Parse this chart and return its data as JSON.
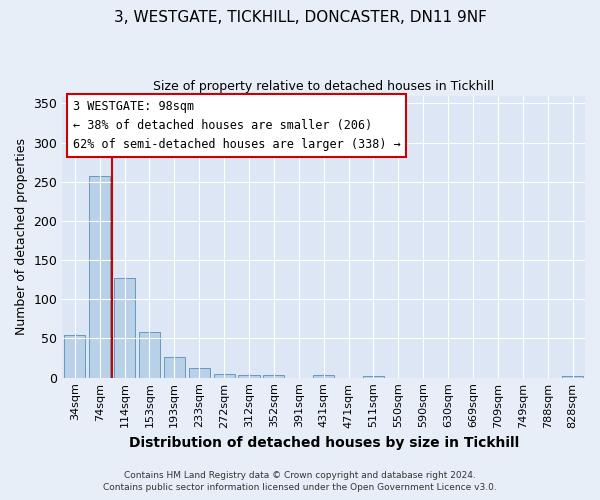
{
  "title": "3, WESTGATE, TICKHILL, DONCASTER, DN11 9NF",
  "subtitle": "Size of property relative to detached houses in Tickhill",
  "xlabel": "Distribution of detached houses by size in Tickhill",
  "ylabel": "Number of detached properties",
  "bar_labels": [
    "34sqm",
    "74sqm",
    "114sqm",
    "153sqm",
    "193sqm",
    "233sqm",
    "272sqm",
    "312sqm",
    "352sqm",
    "391sqm",
    "431sqm",
    "471sqm",
    "511sqm",
    "550sqm",
    "590sqm",
    "630sqm",
    "669sqm",
    "709sqm",
    "749sqm",
    "788sqm",
    "828sqm"
  ],
  "bar_values": [
    55,
    257,
    127,
    58,
    27,
    12,
    5,
    3,
    3,
    0,
    4,
    0,
    2,
    0,
    0,
    0,
    0,
    0,
    0,
    0,
    2
  ],
  "bar_color": "#b8d0e8",
  "bar_edgecolor": "#6699bb",
  "vline_color": "#cc0000",
  "vline_position": 1.5,
  "annotation_box_text": "3 WESTGATE: 98sqm\n← 38% of detached houses are smaller (206)\n62% of semi-detached houses are larger (338) →",
  "ylim": [
    0,
    360
  ],
  "yticks": [
    0,
    50,
    100,
    150,
    200,
    250,
    300,
    350
  ],
  "footer1": "Contains HM Land Registry data © Crown copyright and database right 2024.",
  "footer2": "Contains public sector information licensed under the Open Government Licence v3.0.",
  "bg_color": "#e8eef8",
  "plot_bg_color": "#dde6f5",
  "grid_color": "#ffffff",
  "box_facecolor": "#ffffff",
  "box_edgecolor": "#cc0000"
}
